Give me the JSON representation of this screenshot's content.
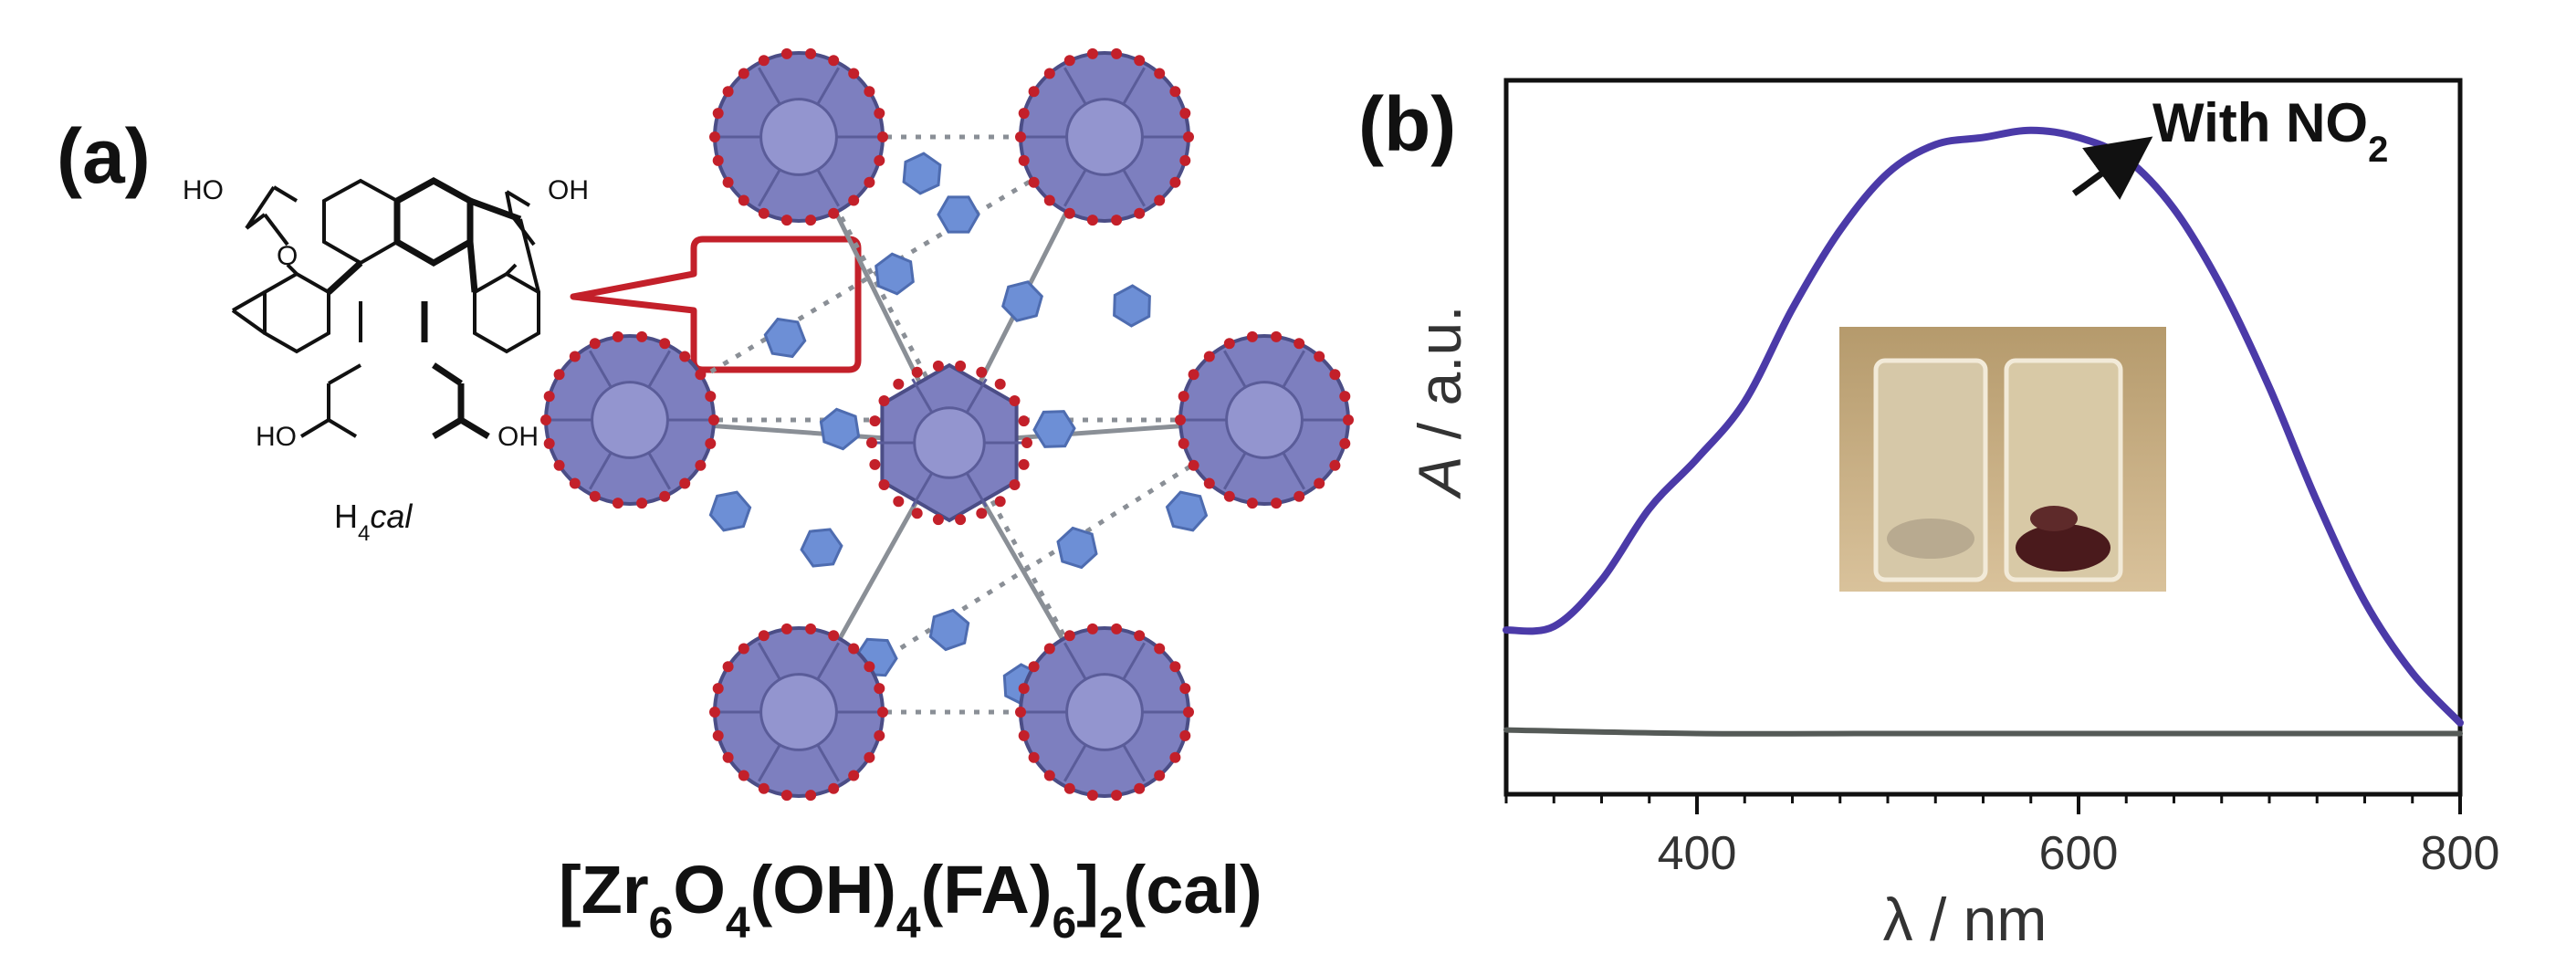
{
  "panel_a": {
    "label": "(a)",
    "molecule": {
      "name_prefix": "H",
      "name_sub": "4",
      "name_suffix": "cal",
      "groups": [
        "HO",
        "O",
        "OH",
        "HO",
        "OH"
      ]
    },
    "formula": {
      "p1": "[Zr",
      "s1": "6",
      "p2": "O",
      "s2": "4",
      "p3": "(OH)",
      "s3": "4",
      "p4": "(FA)",
      "s4": "6",
      "p5": "]",
      "s5": "2",
      "p6": "(cal)"
    },
    "colors": {
      "polyhedra": "#7d7fbf",
      "oxygen": "#c3202a",
      "linker": "#6d8fd6",
      "callout": "#c3202a"
    }
  },
  "panel_b": {
    "label": "(b)",
    "annotation": {
      "text": "With NO",
      "sub": "2"
    }
  },
  "chart_data": {
    "type": "line",
    "xlabel": "λ / nm",
    "ylabel": "A / a.u.",
    "xlim": [
      300,
      800
    ],
    "ylim": [
      0,
      1
    ],
    "xticks": [
      400,
      600,
      800
    ],
    "y_tick_labels": false,
    "grid": false,
    "series": [
      {
        "color": "#4b3aa8",
        "x": [
          300,
          325,
          350,
          375,
          400,
          425,
          450,
          475,
          500,
          525,
          550,
          575,
          600,
          625,
          650,
          675,
          700,
          725,
          750,
          775,
          800
        ],
        "y": [
          0.23,
          0.235,
          0.3,
          0.4,
          0.47,
          0.55,
          0.68,
          0.79,
          0.87,
          0.91,
          0.92,
          0.93,
          0.92,
          0.89,
          0.82,
          0.71,
          0.57,
          0.41,
          0.27,
          0.17,
          0.1
        ]
      },
      {
        "color": "#555a57",
        "x": [
          300,
          400,
          500,
          600,
          700,
          800
        ],
        "y": [
          0.09,
          0.085,
          0.085,
          0.085,
          0.085,
          0.085
        ]
      }
    ]
  }
}
